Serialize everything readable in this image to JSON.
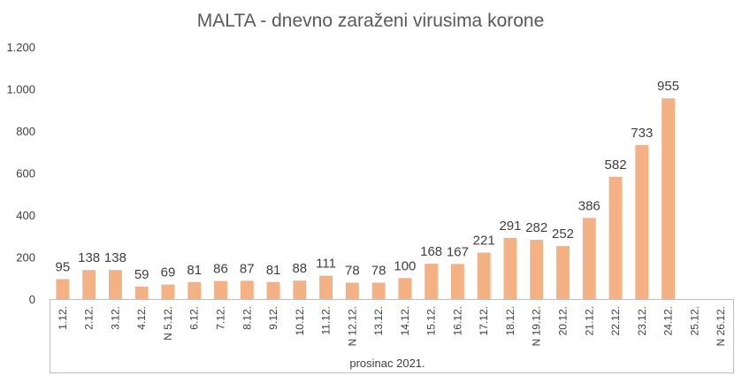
{
  "chart_data": {
    "type": "bar",
    "title": "MALTA - dnevno zaraženi virusima korone",
    "group_label": "prosinac 2021.",
    "categories": [
      "1.12.",
      "2.12.",
      "3.12.",
      "4.12.",
      "N 5.12.",
      "6.12.",
      "7.12.",
      "8.12.",
      "9.12.",
      "10.12.",
      "11.12.",
      "N 12.12.",
      "13.12.",
      "14.12.",
      "15.12.",
      "16.12.",
      "17.12.",
      "18.12.",
      "N 19.12.",
      "20.12.",
      "21.12.",
      "22.12.",
      "23.12.",
      "24.12.",
      "25.12.",
      "N 26.12."
    ],
    "values": [
      95,
      138,
      138,
      59,
      69,
      81,
      86,
      87,
      81,
      88,
      111,
      78,
      78,
      100,
      168,
      167,
      221,
      291,
      282,
      252,
      386,
      582,
      733,
      955,
      null,
      null
    ],
    "data_labels": [
      "95",
      "138",
      "138",
      "59",
      "69",
      "81",
      "86",
      "87",
      "81",
      "88",
      "111",
      "78",
      "78",
      "100",
      "168",
      "167",
      "221",
      "291",
      "282",
      "252",
      "386",
      "582",
      "733",
      "955",
      "",
      ""
    ],
    "y_ticks": [
      0,
      200,
      400,
      600,
      800,
      1000,
      1200
    ],
    "y_tick_labels": [
      "0",
      "200",
      "400",
      "600",
      "800",
      "1.000",
      "1.200"
    ],
    "ylim": [
      0,
      1200
    ],
    "bar_color": "#F4B183",
    "grid": false
  }
}
